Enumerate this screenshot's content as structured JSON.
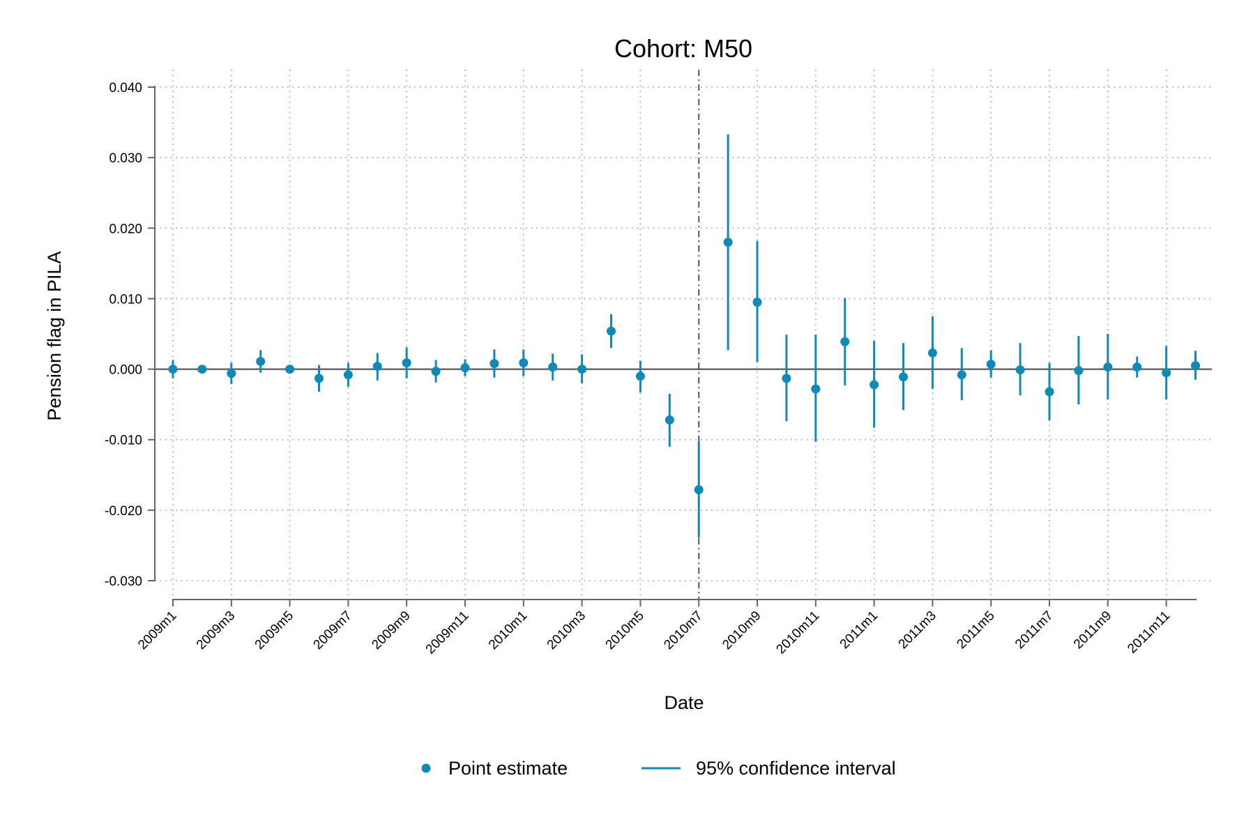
{
  "chart_data": {
    "type": "scatter",
    "title": "Cohort: M50",
    "xlabel": "Date",
    "ylabel": "Pension flag in PILA",
    "ylim": [
      -0.03,
      0.04
    ],
    "yticks": [
      "0.040",
      "0.030",
      "0.020",
      "0.010",
      "0.000",
      "-0.010",
      "-0.020",
      "-0.030"
    ],
    "ytick_values": [
      0.04,
      0.03,
      0.02,
      0.01,
      0.0,
      -0.01,
      -0.02,
      -0.03
    ],
    "x": [
      "2009m1",
      "2009m2",
      "2009m3",
      "2009m4",
      "2009m5",
      "2009m6",
      "2009m7",
      "2009m8",
      "2009m9",
      "2009m10",
      "2009m11",
      "2009m12",
      "2010m1",
      "2010m2",
      "2010m3",
      "2010m4",
      "2010m5",
      "2010m6",
      "2010m7",
      "2010m8",
      "2010m9",
      "2010m10",
      "2010m11",
      "2010m12",
      "2011m1",
      "2011m2",
      "2011m3",
      "2011m4",
      "2011m5",
      "2011m6",
      "2011m7",
      "2011m8",
      "2011m9",
      "2011m10",
      "2011m11",
      "2011m12"
    ],
    "xtick_labels": [
      "2009m1",
      "2009m3",
      "2009m5",
      "2009m7",
      "2009m9",
      "2009m11",
      "2010m1",
      "2010m3",
      "2010m5",
      "2010m7",
      "2010m9",
      "2010m11",
      "2011m1",
      "2011m3",
      "2011m5",
      "2011m7",
      "2011m9",
      "2011m11"
    ],
    "reference_line_x": "2010m7",
    "reference_line_y": 0.0,
    "grid": true,
    "legend_placement": "bottom",
    "series": [
      {
        "name": "Point estimate",
        "values": [
          0.0,
          0.0,
          -0.0006,
          0.0011,
          0.0,
          -0.0013,
          -0.0008,
          0.0004,
          0.0009,
          -0.0003,
          0.0002,
          0.0008,
          0.0009,
          0.0003,
          0.0,
          0.0054,
          -0.001,
          -0.0072,
          -0.0171,
          0.018,
          0.0095,
          -0.0013,
          -0.0028,
          0.0039,
          -0.0022,
          -0.0011,
          0.0023,
          -0.0008,
          0.0007,
          -0.0001,
          -0.0032,
          -0.0002,
          0.0003,
          0.0003,
          -0.0005,
          0.0005
        ]
      },
      {
        "name": "95% confidence interval",
        "lower": [
          -0.0013,
          0.0,
          -0.0021,
          -0.0005,
          0.0,
          -0.0032,
          -0.0025,
          -0.0016,
          -0.0013,
          -0.0019,
          -0.001,
          -0.0012,
          -0.001,
          -0.0016,
          -0.002,
          0.003,
          -0.0033,
          -0.011,
          -0.0239,
          0.0027,
          0.001,
          -0.0074,
          -0.0103,
          -0.0023,
          -0.0083,
          -0.0058,
          -0.0028,
          -0.0044,
          -0.0012,
          -0.0037,
          -0.0073,
          -0.005,
          -0.0043,
          -0.0012,
          -0.0043,
          -0.0015
        ],
        "upper": [
          0.0013,
          0.0,
          0.0009,
          0.0027,
          0.0,
          0.0006,
          0.0009,
          0.0023,
          0.0031,
          0.0013,
          0.0014,
          0.0028,
          0.0028,
          0.0022,
          0.0021,
          0.0078,
          0.0012,
          -0.0035,
          -0.0103,
          0.0333,
          0.0182,
          0.0049,
          0.0049,
          0.0101,
          0.004,
          0.0037,
          0.0075,
          0.003,
          0.0027,
          0.0037,
          0.0009,
          0.0047,
          0.005,
          0.0018,
          0.0033,
          0.0026
        ]
      }
    ],
    "colors": {
      "series": "#0f8ab8",
      "axis": "#666666",
      "grid": "#9a9a9a"
    }
  }
}
